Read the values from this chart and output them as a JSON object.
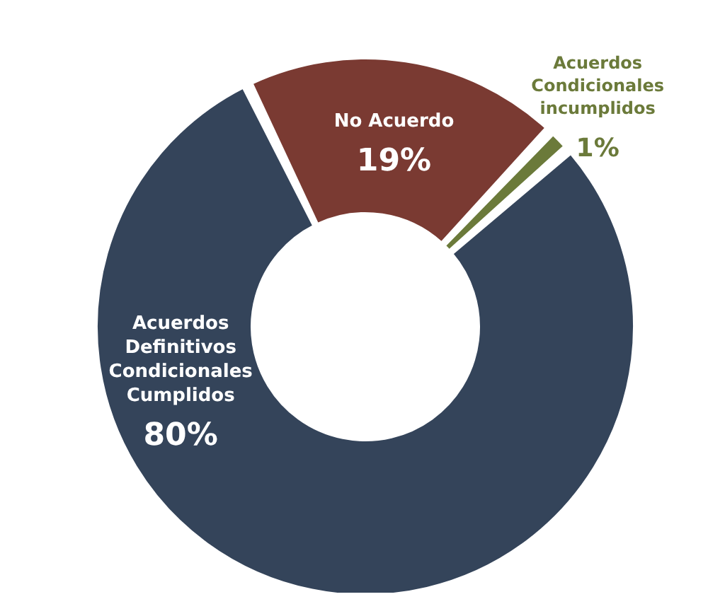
{
  "chart_data": {
    "type": "donut",
    "categories": [
      "No Acuerdo",
      "Acuerdos Condicionales incumplidos",
      "Acuerdos Definitivos Condicionales Cumplidos"
    ],
    "values": [
      19,
      1,
      80
    ],
    "value_labels": [
      "19%",
      "1%",
      "80%"
    ],
    "colors": [
      "#7a3a32",
      "#6b7a3a",
      "#34445a"
    ]
  }
}
